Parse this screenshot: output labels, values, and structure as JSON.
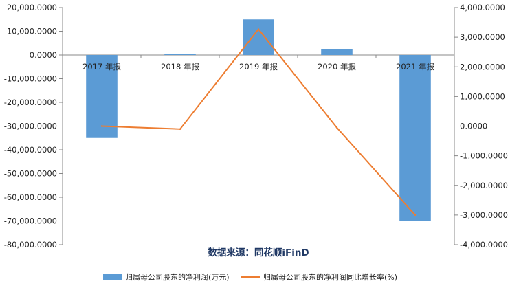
{
  "chart_data": {
    "type": "bar",
    "categories": [
      "2017 年报",
      "2018 年报",
      "2019 年报",
      "2020 年报",
      "2021 年报"
    ],
    "series": [
      {
        "name": "归属母公司股东的净利润(万元)",
        "type": "bar",
        "axis": "left",
        "values": [
          -35000,
          300,
          15000,
          2500,
          -70000
        ]
      },
      {
        "name": "归属母公司股东的净利润同比增长率(%)",
        "type": "line",
        "axis": "right",
        "values": [
          0,
          -100,
          3270,
          -50,
          -3000
        ]
      }
    ],
    "y_left": {
      "lim": [
        -80000,
        20000
      ],
      "ticks": [
        "20,000.0000",
        "10,000.0000",
        "0.0000",
        "-10,000.0000",
        "-20,000.0000",
        "-30,000.0000",
        "-40,000.0000",
        "-50,000.0000",
        "-60,000.0000",
        "-70,000.0000",
        "-80,000.0000"
      ]
    },
    "y_right": {
      "lim": [
        -4000,
        4000
      ],
      "ticks": [
        "4,000.0000",
        "3,000.0000",
        "2,000.0000",
        "1,000.0000",
        "0.0000",
        "-1,000.0000",
        "-2,000.0000",
        "-3,000.0000",
        "-4,000.0000"
      ]
    },
    "source": "数据来源：同花顺iFinD",
    "legend_position": "bottom",
    "grid": false,
    "colors": {
      "bar": "#5b9bd5",
      "line": "#ed7d31",
      "axis": "#888888"
    }
  }
}
